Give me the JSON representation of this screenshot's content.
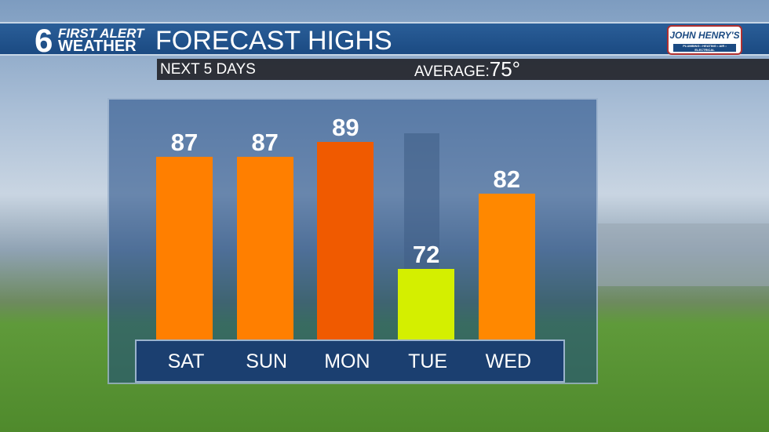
{
  "header": {
    "logo_number": "6",
    "logo_line1": "FIRST ALERT",
    "logo_line2": "WEATHER",
    "title": "FORECAST HIGHS",
    "sponsor": "JOHN HENRY'S",
    "sponsor_tagline": "PLUMBING • HEATING • AIR • ELECTRICAL"
  },
  "subheader": {
    "left": "NEXT 5 DAYS",
    "average_label": "AVERAGE:",
    "average_value": "75°"
  },
  "chart_data": {
    "type": "bar",
    "categories": [
      "SAT",
      "SUN",
      "MON",
      "TUE",
      "WED"
    ],
    "values": [
      87,
      87,
      89,
      72,
      82
    ],
    "colors": [
      "#ff7f00",
      "#ff7f00",
      "#f05a00",
      "#d4ef00",
      "#ff8800"
    ],
    "grid": false
  }
}
